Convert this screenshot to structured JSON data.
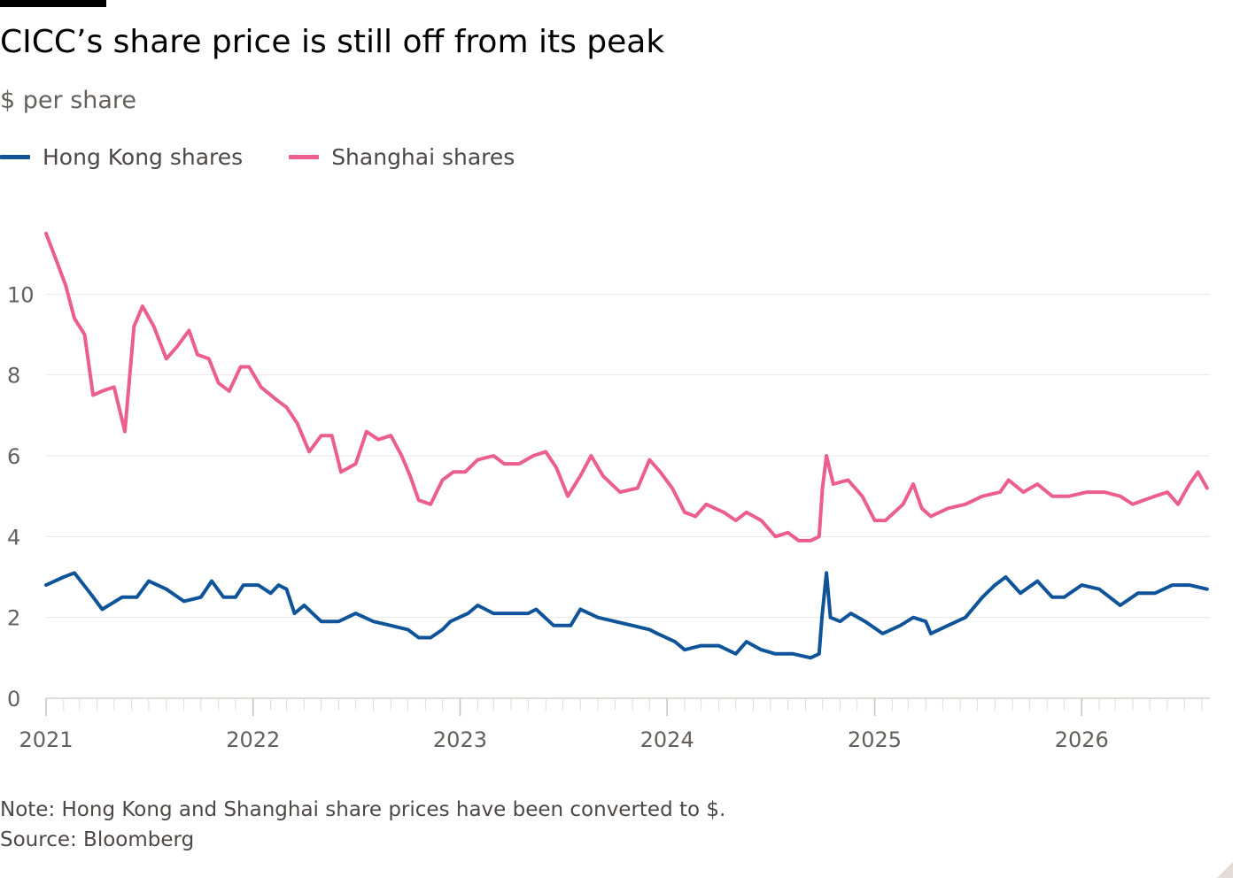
{
  "chart_data": {
    "type": "line",
    "title": "CICC’s share price is still off from its peak",
    "subtitle": "$ per share",
    "ylim": [
      0,
      12
    ],
    "yticks": [
      0,
      2,
      4,
      6,
      8,
      10
    ],
    "xlim": [
      "2021-01-01",
      "2026-08-15"
    ],
    "xtick_labels": [
      "2021",
      "2022",
      "2023",
      "2024",
      "2025",
      "2026"
    ],
    "grid": "horizontal",
    "legend_position": "top-left",
    "note": "Note: Hong Kong and Shanghai share prices have been converted to $.",
    "source": "Source: Bloomberg",
    "series": [
      {
        "name": "Hong Kong shares",
        "color": "#0f5499",
        "points": [
          [
            "2021-01-01",
            2.8
          ],
          [
            "2021-02-01",
            3.0
          ],
          [
            "2021-02-20",
            3.1
          ],
          [
            "2021-03-20",
            2.6
          ],
          [
            "2021-04-10",
            2.2
          ],
          [
            "2021-05-15",
            2.5
          ],
          [
            "2021-06-10",
            2.5
          ],
          [
            "2021-07-01",
            2.9
          ],
          [
            "2021-08-01",
            2.7
          ],
          [
            "2021-09-01",
            2.4
          ],
          [
            "2021-10-01",
            2.5
          ],
          [
            "2021-10-20",
            2.9
          ],
          [
            "2021-11-10",
            2.5
          ],
          [
            "2021-12-01",
            2.5
          ],
          [
            "2021-12-15",
            2.8
          ],
          [
            "2022-01-10",
            2.8
          ],
          [
            "2022-02-01",
            2.6
          ],
          [
            "2022-02-15",
            2.8
          ],
          [
            "2022-03-01",
            2.7
          ],
          [
            "2022-03-15",
            2.1
          ],
          [
            "2022-04-01",
            2.3
          ],
          [
            "2022-05-01",
            1.9
          ],
          [
            "2022-06-01",
            1.9
          ],
          [
            "2022-07-01",
            2.1
          ],
          [
            "2022-08-01",
            1.9
          ],
          [
            "2022-09-01",
            1.8
          ],
          [
            "2022-10-01",
            1.7
          ],
          [
            "2022-10-20",
            1.5
          ],
          [
            "2022-11-10",
            1.5
          ],
          [
            "2022-12-01",
            1.7
          ],
          [
            "2022-12-15",
            1.9
          ],
          [
            "2023-01-15",
            2.1
          ],
          [
            "2023-02-01",
            2.3
          ],
          [
            "2023-03-01",
            2.1
          ],
          [
            "2023-04-01",
            2.1
          ],
          [
            "2023-05-01",
            2.1
          ],
          [
            "2023-05-15",
            2.2
          ],
          [
            "2023-06-15",
            1.8
          ],
          [
            "2023-07-15",
            1.8
          ],
          [
            "2023-08-01",
            2.2
          ],
          [
            "2023-09-01",
            2.0
          ],
          [
            "2023-10-01",
            1.9
          ],
          [
            "2023-11-01",
            1.8
          ],
          [
            "2023-12-01",
            1.7
          ],
          [
            "2023-12-15",
            1.6
          ],
          [
            "2024-01-15",
            1.4
          ],
          [
            "2024-02-01",
            1.2
          ],
          [
            "2024-03-01",
            1.3
          ],
          [
            "2024-04-01",
            1.3
          ],
          [
            "2024-05-01",
            1.1
          ],
          [
            "2024-05-20",
            1.4
          ],
          [
            "2024-06-15",
            1.2
          ],
          [
            "2024-07-10",
            1.1
          ],
          [
            "2024-08-10",
            1.1
          ],
          [
            "2024-09-10",
            1.0
          ],
          [
            "2024-09-25",
            1.1
          ],
          [
            "2024-09-30",
            2.0
          ],
          [
            "2024-10-08",
            3.1
          ],
          [
            "2024-10-15",
            2.0
          ],
          [
            "2024-11-01",
            1.9
          ],
          [
            "2024-11-20",
            2.1
          ],
          [
            "2024-12-15",
            1.9
          ],
          [
            "2025-01-15",
            1.6
          ],
          [
            "2025-02-15",
            1.8
          ],
          [
            "2025-03-10",
            2.0
          ],
          [
            "2025-04-01",
            1.9
          ],
          [
            "2025-04-10",
            1.6
          ],
          [
            "2025-05-10",
            1.8
          ],
          [
            "2025-06-10",
            2.0
          ],
          [
            "2025-07-10",
            2.5
          ],
          [
            "2025-08-01",
            2.8
          ],
          [
            "2025-08-20",
            3.0
          ],
          [
            "2025-09-15",
            2.6
          ],
          [
            "2025-10-15",
            2.9
          ],
          [
            "2025-11-10",
            2.5
          ],
          [
            "2025-12-01",
            2.5
          ],
          [
            "2026-01-01",
            2.8
          ],
          [
            "2026-02-01",
            2.7
          ],
          [
            "2026-03-10",
            2.3
          ],
          [
            "2026-04-10",
            2.6
          ],
          [
            "2026-05-10",
            2.6
          ],
          [
            "2026-06-10",
            2.8
          ],
          [
            "2026-07-10",
            2.8
          ],
          [
            "2026-08-10",
            2.7
          ]
        ]
      },
      {
        "name": "Shanghai shares",
        "color": "#eb5e8d",
        "points": [
          [
            "2021-01-01",
            11.5
          ],
          [
            "2021-01-20",
            10.8
          ],
          [
            "2021-02-05",
            10.2
          ],
          [
            "2021-02-20",
            9.4
          ],
          [
            "2021-03-10",
            9.0
          ],
          [
            "2021-03-25",
            7.5
          ],
          [
            "2021-04-10",
            7.6
          ],
          [
            "2021-05-01",
            7.7
          ],
          [
            "2021-05-20",
            6.6
          ],
          [
            "2021-06-05",
            9.2
          ],
          [
            "2021-06-20",
            9.7
          ],
          [
            "2021-07-10",
            9.2
          ],
          [
            "2021-08-01",
            8.4
          ],
          [
            "2021-08-20",
            8.7
          ],
          [
            "2021-09-10",
            9.1
          ],
          [
            "2021-09-25",
            8.5
          ],
          [
            "2021-10-15",
            8.4
          ],
          [
            "2021-11-01",
            7.8
          ],
          [
            "2021-11-20",
            7.6
          ],
          [
            "2021-12-10",
            8.2
          ],
          [
            "2021-12-25",
            8.2
          ],
          [
            "2022-01-15",
            7.7
          ],
          [
            "2022-02-10",
            7.4
          ],
          [
            "2022-03-01",
            7.2
          ],
          [
            "2022-03-20",
            6.8
          ],
          [
            "2022-04-10",
            6.1
          ],
          [
            "2022-05-01",
            6.5
          ],
          [
            "2022-05-20",
            6.5
          ],
          [
            "2022-06-05",
            5.6
          ],
          [
            "2022-07-01",
            5.8
          ],
          [
            "2022-07-20",
            6.6
          ],
          [
            "2022-08-10",
            6.4
          ],
          [
            "2022-09-01",
            6.5
          ],
          [
            "2022-09-20",
            6.0
          ],
          [
            "2022-10-05",
            5.5
          ],
          [
            "2022-10-20",
            4.9
          ],
          [
            "2022-11-10",
            4.8
          ],
          [
            "2022-12-01",
            5.4
          ],
          [
            "2022-12-20",
            5.6
          ],
          [
            "2023-01-10",
            5.6
          ],
          [
            "2023-02-01",
            5.9
          ],
          [
            "2023-03-01",
            6.0
          ],
          [
            "2023-03-20",
            5.8
          ],
          [
            "2023-04-15",
            5.8
          ],
          [
            "2023-05-10",
            6.0
          ],
          [
            "2023-06-01",
            6.1
          ],
          [
            "2023-06-20",
            5.7
          ],
          [
            "2023-07-10",
            5.0
          ],
          [
            "2023-08-01",
            5.5
          ],
          [
            "2023-08-20",
            6.0
          ],
          [
            "2023-09-10",
            5.5
          ],
          [
            "2023-10-10",
            5.1
          ],
          [
            "2023-11-10",
            5.2
          ],
          [
            "2023-12-01",
            5.9
          ],
          [
            "2023-12-20",
            5.6
          ],
          [
            "2024-01-10",
            5.2
          ],
          [
            "2024-02-01",
            4.6
          ],
          [
            "2024-02-20",
            4.5
          ],
          [
            "2024-03-10",
            4.8
          ],
          [
            "2024-04-10",
            4.6
          ],
          [
            "2024-05-01",
            4.4
          ],
          [
            "2024-05-20",
            4.6
          ],
          [
            "2024-06-15",
            4.4
          ],
          [
            "2024-07-10",
            4.0
          ],
          [
            "2024-08-01",
            4.1
          ],
          [
            "2024-08-20",
            3.9
          ],
          [
            "2024-09-10",
            3.9
          ],
          [
            "2024-09-25",
            4.0
          ],
          [
            "2024-10-01",
            5.2
          ],
          [
            "2024-10-08",
            6.0
          ],
          [
            "2024-10-20",
            5.3
          ],
          [
            "2024-11-15",
            5.4
          ],
          [
            "2024-12-10",
            5.0
          ],
          [
            "2025-01-01",
            4.4
          ],
          [
            "2025-01-20",
            4.4
          ],
          [
            "2025-02-20",
            4.8
          ],
          [
            "2025-03-10",
            5.3
          ],
          [
            "2025-03-25",
            4.7
          ],
          [
            "2025-04-10",
            4.5
          ],
          [
            "2025-05-10",
            4.7
          ],
          [
            "2025-06-10",
            4.8
          ],
          [
            "2025-07-10",
            5.0
          ],
          [
            "2025-08-10",
            5.1
          ],
          [
            "2025-08-25",
            5.4
          ],
          [
            "2025-09-20",
            5.1
          ],
          [
            "2025-10-15",
            5.3
          ],
          [
            "2025-11-10",
            5.0
          ],
          [
            "2025-12-10",
            5.0
          ],
          [
            "2026-01-10",
            5.1
          ],
          [
            "2026-02-10",
            5.1
          ],
          [
            "2026-03-10",
            5.0
          ],
          [
            "2026-04-01",
            4.8
          ],
          [
            "2026-04-20",
            4.9
          ],
          [
            "2026-05-10",
            5.0
          ],
          [
            "2026-06-01",
            5.1
          ],
          [
            "2026-06-20",
            4.8
          ],
          [
            "2026-07-10",
            5.3
          ],
          [
            "2026-07-25",
            5.6
          ],
          [
            "2026-08-10",
            5.2
          ]
        ]
      }
    ]
  }
}
